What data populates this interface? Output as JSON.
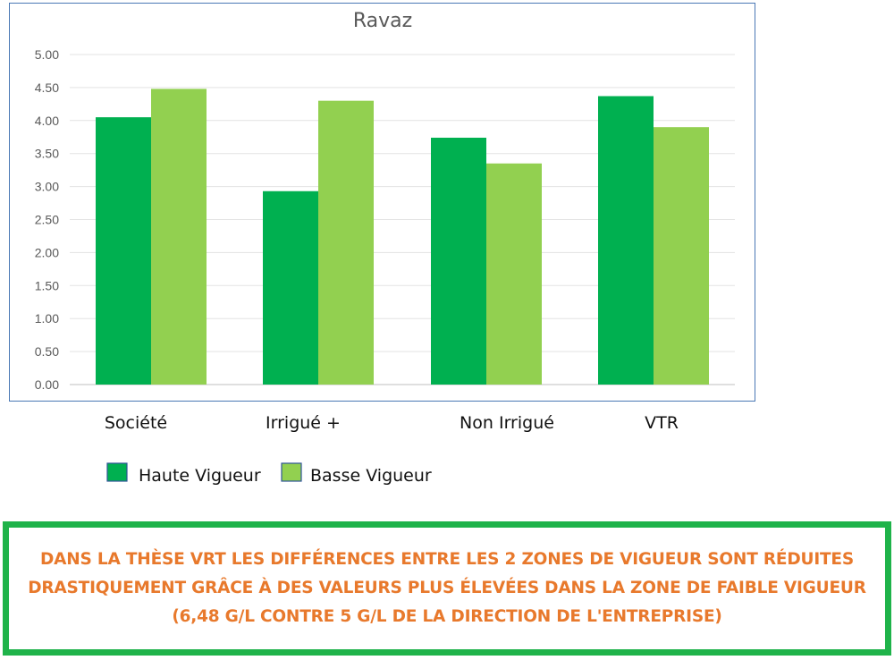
{
  "chart_data": {
    "type": "bar",
    "title": "Ravaz",
    "categories": [
      "Société",
      "Irrigué +",
      "Non Irrigué",
      "VTR"
    ],
    "series": [
      {
        "name": "Haute Vigueur",
        "color": "#00b050",
        "values": [
          4.05,
          2.93,
          3.74,
          4.37
        ]
      },
      {
        "name": "Basse Vigueur",
        "color": "#92d050",
        "values": [
          4.48,
          4.3,
          3.35,
          3.9
        ]
      }
    ],
    "yticks": [
      "5.00",
      "4.50",
      "4.00",
      "3.50",
      "3.00",
      "2.50",
      "2.00",
      "1.50",
      "1.00",
      "0.50",
      "0.00"
    ],
    "ylim": [
      0,
      5
    ],
    "grid": true,
    "legend_position": "bottom-left"
  },
  "note": {
    "text": "DANS LA THÈSE VRT LES DIFFÉRENCES ENTRE LES 2 ZONES DE VIGUEUR SONT RÉDUITES DRASTIQUEMENT GRÂCE À DES VALEURS PLUS ÉLEVÉES DANS LA ZONE DE FAIBLE VIGUEUR (6,48 G/L CONTRE 5 G/L DE LA DIRECTION DE L'ENTREPRISE)"
  }
}
